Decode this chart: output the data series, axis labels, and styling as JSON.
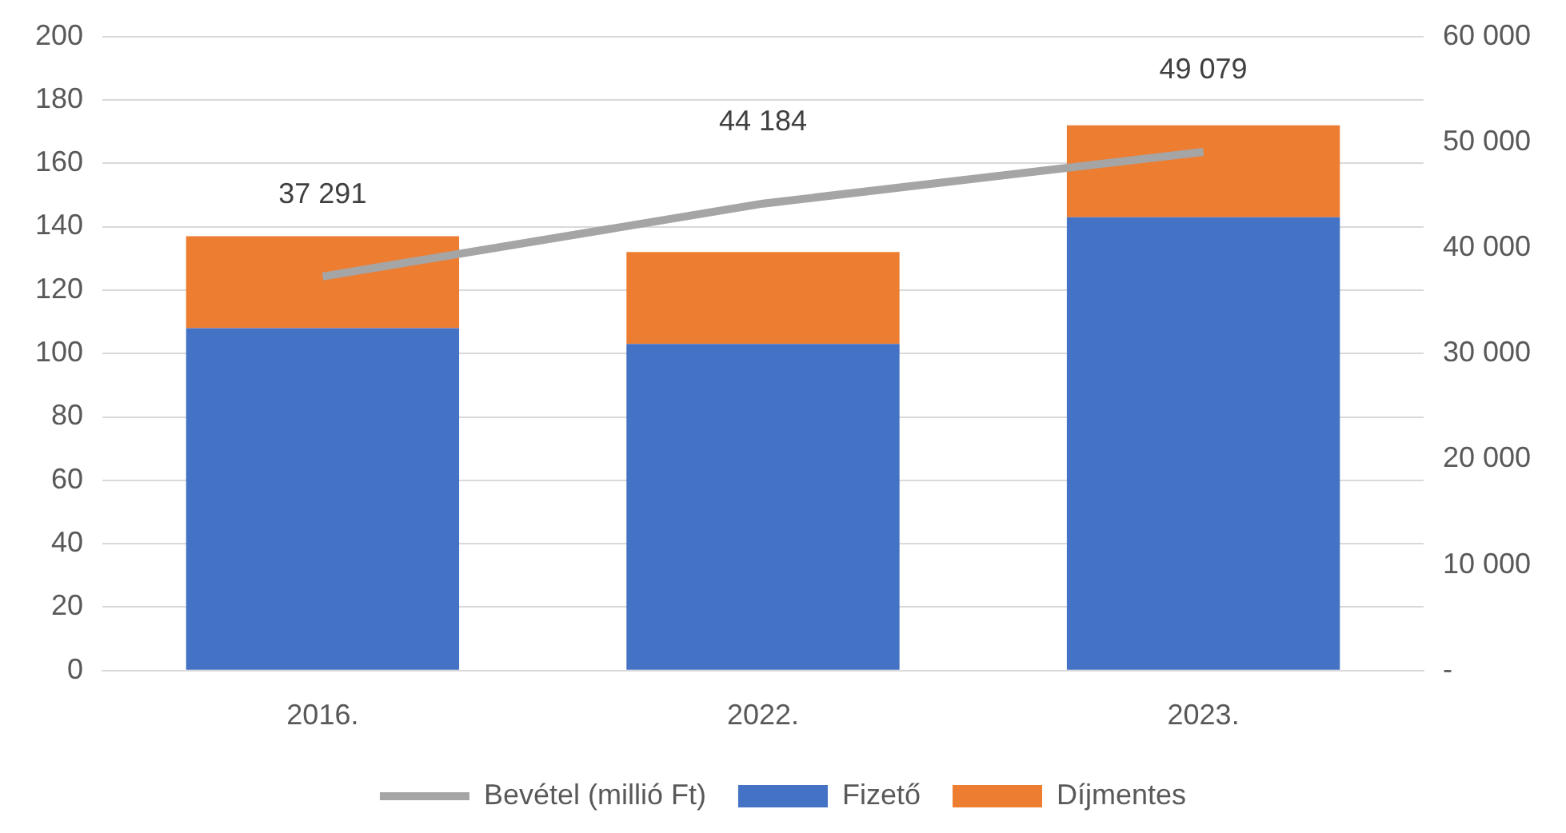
{
  "chart_data": {
    "type": "bar",
    "stacked": true,
    "categories": [
      "2016.",
      "2022.",
      "2023."
    ],
    "series": [
      {
        "name": "Fizető",
        "color": "#4472c4",
        "values": [
          108,
          103,
          143
        ]
      },
      {
        "name": "Díjmentes",
        "color": "#ed7d31",
        "values": [
          29,
          29,
          29
        ]
      },
      {
        "name": "Bevétel (millió Ft)",
        "type": "line",
        "axis": "y2",
        "color": "#a5a5a5",
        "values": [
          37291,
          44184,
          49079
        ],
        "value_labels": [
          "37 291",
          "44 184",
          "49 079"
        ]
      }
    ],
    "ylim": [
      0,
      200
    ],
    "yticks": [
      0,
      20,
      40,
      60,
      80,
      100,
      120,
      140,
      160,
      180,
      200
    ],
    "y2lim": [
      0,
      60000
    ],
    "y2ticks": [
      {
        "value": 0,
        "label": "-"
      },
      {
        "value": 10000,
        "label": "10 000"
      },
      {
        "value": 20000,
        "label": "20 000"
      },
      {
        "value": 30000,
        "label": "30 000"
      },
      {
        "value": 40000,
        "label": "40 000"
      },
      {
        "value": 50000,
        "label": "50 000"
      },
      {
        "value": 60000,
        "label": "60 000"
      }
    ],
    "grid": "y",
    "legend": "bottom",
    "marker": "none"
  }
}
